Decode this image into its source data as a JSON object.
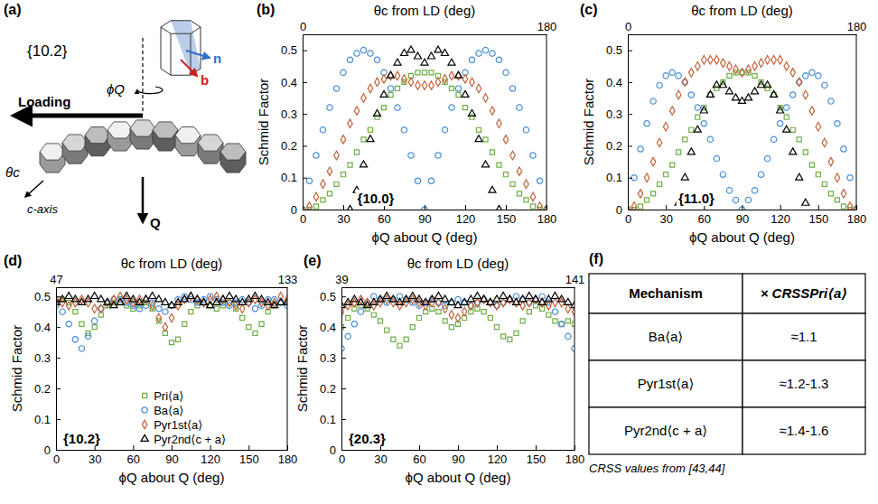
{
  "panel_letters": [
    "(a)",
    "(b)",
    "(c)",
    "(d)",
    "(e)",
    "(f)"
  ],
  "diagram": {
    "plane": "{10.2}",
    "loading": "Loading",
    "phi": "ϕQ",
    "theta": "θc",
    "c_axis": "c-axis",
    "q": "Q",
    "n": "n",
    "b": "b"
  },
  "chart_data": [
    {
      "type": "scatter",
      "annotation": "{10.0}",
      "x_label": "ϕQ about Q (deg)",
      "x2_label": "θc from LD (deg)",
      "y_label": "Schmid Factor",
      "x": [
        0,
        5,
        10,
        15,
        20,
        25,
        30,
        35,
        40,
        45,
        50,
        55,
        60,
        65,
        70,
        75,
        80,
        85,
        90,
        95,
        100,
        105,
        110,
        115,
        120,
        125,
        130,
        135,
        140,
        145,
        150,
        155,
        160,
        165,
        170,
        175,
        180
      ],
      "xlim": [
        0,
        180
      ],
      "xticks": [
        0,
        30,
        60,
        90,
        120,
        150,
        180
      ],
      "x2lim": [
        0,
        180
      ],
      "x2ticks": [
        0,
        180
      ],
      "ylim": [
        0,
        0.55
      ],
      "yticks": [
        0,
        0.1,
        0.2,
        0.3,
        0.4,
        0.5
      ],
      "series": [
        {
          "color": "#6fae45",
          "marker": "square",
          "values": [
            0,
            0,
            0.01,
            0.03,
            0.05,
            0.08,
            0.11,
            0.14,
            0.18,
            0.22,
            0.25,
            0.29,
            0.32,
            0.36,
            0.38,
            0.4,
            0.42,
            0.43,
            0.43,
            0.43,
            0.42,
            0.4,
            0.38,
            0.36,
            0.32,
            0.29,
            0.25,
            0.22,
            0.18,
            0.14,
            0.11,
            0.08,
            0.05,
            0.03,
            0.01,
            0,
            0
          ]
        },
        {
          "color": "#4a8fd6",
          "marker": "circle",
          "values": [
            0,
            0.09,
            0.17,
            0.25,
            0.32,
            0.38,
            0.43,
            0.47,
            0.49,
            0.5,
            0.49,
            0.47,
            0.43,
            0.38,
            0.32,
            0.25,
            0.17,
            0.09,
            0,
            0.09,
            0.17,
            0.25,
            0.32,
            0.38,
            0.43,
            0.47,
            0.49,
            0.5,
            0.49,
            0.47,
            0.43,
            0.38,
            0.32,
            0.25,
            0.17,
            0.09,
            0
          ]
        },
        {
          "color": "#c4623a",
          "marker": "diamond",
          "values": [
            0,
            0.01,
            0.04,
            0.08,
            0.12,
            0.17,
            0.22,
            0.27,
            0.31,
            0.35,
            0.38,
            0.4,
            0.41,
            0.42,
            0.42,
            0.41,
            0.4,
            0.39,
            0.39,
            0.39,
            0.4,
            0.41,
            0.42,
            0.42,
            0.41,
            0.4,
            0.38,
            0.35,
            0.31,
            0.27,
            0.22,
            0.17,
            0.12,
            0.08,
            0.04,
            0.01,
            0
          ]
        },
        {
          "color": "#000000",
          "marker": "triangle",
          "values": [
            null,
            null,
            null,
            null,
            null,
            null,
            null,
            0,
            0.06,
            0.14,
            0.22,
            0.3,
            0.36,
            0.42,
            0.46,
            0.49,
            0.5,
            0.48,
            0.46,
            0.48,
            0.5,
            0.49,
            0.46,
            0.42,
            0.36,
            0.3,
            0.22,
            0.14,
            0.06,
            0,
            null,
            null,
            null,
            null,
            null,
            null,
            null
          ]
        }
      ]
    },
    {
      "type": "scatter",
      "annotation": "{11.0}",
      "x_label": "ϕQ about Q (deg)",
      "x2_label": "θc from LD (deg)",
      "y_label": "Schmid Factor",
      "x": [
        0,
        5,
        10,
        15,
        20,
        25,
        30,
        35,
        40,
        45,
        50,
        55,
        60,
        65,
        70,
        75,
        80,
        85,
        90,
        95,
        100,
        105,
        110,
        115,
        120,
        125,
        130,
        135,
        140,
        145,
        150,
        155,
        160,
        165,
        170,
        175,
        180
      ],
      "xlim": [
        0,
        180
      ],
      "xticks": [
        0,
        30,
        60,
        90,
        120,
        150,
        180
      ],
      "x2lim": [
        0,
        180
      ],
      "x2ticks": [
        0,
        180
      ],
      "ylim": [
        0,
        0.55
      ],
      "yticks": [
        0,
        0.1,
        0.2,
        0.3,
        0.4,
        0.5
      ],
      "series": [
        {
          "color": "#6fae45",
          "marker": "square",
          "values": [
            0,
            0,
            0.01,
            0.03,
            0.05,
            0.08,
            0.11,
            0.14,
            0.18,
            0.22,
            0.25,
            0.29,
            0.32,
            0.36,
            0.38,
            0.4,
            0.42,
            0.43,
            0.43,
            0.43,
            0.42,
            0.4,
            0.38,
            0.36,
            0.32,
            0.29,
            0.25,
            0.22,
            0.18,
            0.14,
            0.11,
            0.08,
            0.05,
            0.03,
            0.01,
            0,
            0
          ]
        },
        {
          "color": "#4a8fd6",
          "marker": "circle",
          "values": [
            0,
            0.1,
            0.19,
            0.27,
            0.34,
            0.39,
            0.42,
            0.43,
            0.42,
            0.4,
            0.36,
            0.32,
            0.27,
            0.22,
            0.16,
            0.11,
            0.06,
            0.03,
            0,
            0.03,
            0.06,
            0.11,
            0.16,
            0.22,
            0.27,
            0.32,
            0.36,
            0.4,
            0.42,
            0.43,
            0.42,
            0.39,
            0.34,
            0.27,
            0.19,
            0.1,
            0
          ]
        },
        {
          "color": "#c4623a",
          "marker": "diamond",
          "values": [
            0,
            0.01,
            0.05,
            0.1,
            0.15,
            0.21,
            0.26,
            0.31,
            0.36,
            0.4,
            0.43,
            0.45,
            0.47,
            0.47,
            0.47,
            0.46,
            0.45,
            0.44,
            0.43,
            0.44,
            0.45,
            0.46,
            0.47,
            0.47,
            0.47,
            0.45,
            0.43,
            0.4,
            0.36,
            0.31,
            0.26,
            0.21,
            0.15,
            0.1,
            0.05,
            0.01,
            0
          ]
        },
        {
          "color": "#000000",
          "marker": "triangle",
          "values": [
            null,
            null,
            null,
            null,
            null,
            null,
            null,
            null,
            0.02,
            0.1,
            0.18,
            0.25,
            0.31,
            0.36,
            0.39,
            0.39,
            0.37,
            0.35,
            0.34,
            0.35,
            0.37,
            0.39,
            0.39,
            0.36,
            0.31,
            0.25,
            0.18,
            0.1,
            0.02,
            null,
            null,
            null,
            null,
            null,
            null,
            null,
            null
          ]
        }
      ]
    },
    {
      "type": "scatter",
      "annotation": "{10.2}",
      "x_label": "ϕQ about Q (deg)",
      "x2_label": "θc from LD (deg)",
      "y_label": "Schmid Factor",
      "x": [
        0,
        5,
        10,
        15,
        20,
        25,
        30,
        35,
        40,
        45,
        50,
        55,
        60,
        65,
        70,
        75,
        80,
        85,
        90,
        95,
        100,
        105,
        110,
        115,
        120,
        125,
        130,
        135,
        140,
        145,
        150,
        155,
        160,
        165,
        170,
        175,
        180
      ],
      "xlim": [
        0,
        180
      ],
      "xticks": [
        0,
        30,
        60,
        90,
        120,
        150,
        180
      ],
      "x2lim": [
        47,
        133
      ],
      "x2ticks": [
        47,
        133
      ],
      "ylim": [
        0,
        0.53
      ],
      "yticks": [
        0,
        0.1,
        0.2,
        0.3,
        0.4,
        0.5
      ],
      "legend": "lower center",
      "series": [
        {
          "name": "Pri⟨a⟩",
          "color": "#6fae45",
          "marker": "square",
          "values": [
            0.48,
            0.49,
            0.48,
            0.45,
            0.41,
            0.38,
            0.4,
            0.44,
            0.47,
            0.48,
            0.48,
            0.47,
            0.46,
            0.47,
            0.48,
            0.46,
            0.42,
            0.38,
            0.35,
            0.36,
            0.41,
            0.45,
            0.47,
            0.48,
            0.47,
            0.46,
            0.47,
            0.48,
            0.46,
            0.43,
            0.4,
            0.38,
            0.41,
            0.45,
            0.47,
            0.48,
            0.48
          ]
        },
        {
          "name": "Ba⟨a⟩",
          "color": "#4a8fd6",
          "marker": "circle",
          "values": [
            0.47,
            0.45,
            0.41,
            0.36,
            0.33,
            0.37,
            0.42,
            0.46,
            0.48,
            0.49,
            0.49,
            0.48,
            0.47,
            0.46,
            0.47,
            0.48,
            0.46,
            0.45,
            0.47,
            0.49,
            0.5,
            0.49,
            0.48,
            0.49,
            0.5,
            0.49,
            0.48,
            0.47,
            0.48,
            0.49,
            0.48,
            0.46,
            0.47,
            0.49,
            0.49,
            0.48,
            0.47
          ]
        },
        {
          "name": "Pyr1st⟨a⟩",
          "color": "#c4623a",
          "marker": "diamond",
          "values": [
            0.49,
            0.48,
            0.47,
            0.48,
            0.49,
            0.48,
            0.46,
            0.46,
            0.48,
            0.49,
            0.5,
            0.49,
            0.48,
            0.49,
            0.49,
            0.47,
            0.43,
            0.4,
            0.43,
            0.47,
            0.49,
            0.5,
            0.49,
            0.48,
            0.49,
            0.5,
            0.49,
            0.48,
            0.47,
            0.46,
            0.48,
            0.49,
            0.48,
            0.47,
            0.48,
            0.5,
            0.49
          ]
        },
        {
          "name": "Pyr2nd⟨c + a⟩",
          "color": "#000000",
          "marker": "triangle",
          "values": [
            0.48,
            0.49,
            0.5,
            0.49,
            0.48,
            0.49,
            0.5,
            0.49,
            0.48,
            0.47,
            0.48,
            0.5,
            0.49,
            0.48,
            0.49,
            0.5,
            0.49,
            0.48,
            0.47,
            0.48,
            0.49,
            0.5,
            0.49,
            0.48,
            0.47,
            0.48,
            0.49,
            0.5,
            0.49,
            0.48,
            0.49,
            0.5,
            0.49,
            0.48,
            0.47,
            0.48,
            0.48
          ]
        }
      ]
    },
    {
      "type": "scatter",
      "annotation": "{20.3}",
      "x_label": "ϕQ about Q (deg)",
      "x2_label": "θc from LD (deg)",
      "y_label": "Schmid Factor",
      "x": [
        0,
        5,
        10,
        15,
        20,
        25,
        30,
        35,
        40,
        45,
        50,
        55,
        60,
        65,
        70,
        75,
        80,
        85,
        90,
        95,
        100,
        105,
        110,
        115,
        120,
        125,
        130,
        135,
        140,
        145,
        150,
        155,
        160,
        165,
        170,
        175,
        180
      ],
      "xlim": [
        0,
        180
      ],
      "xticks": [
        0,
        30,
        60,
        90,
        120,
        150,
        180
      ],
      "x2lim": [
        39,
        141
      ],
      "x2ticks": [
        39,
        141
      ],
      "ylim": [
        0,
        0.53
      ],
      "yticks": [
        0,
        0.1,
        0.2,
        0.3,
        0.4,
        0.5
      ],
      "series": [
        {
          "color": "#6fae45",
          "marker": "square",
          "values": [
            0.4,
            0.43,
            0.46,
            0.47,
            0.46,
            0.44,
            0.42,
            0.39,
            0.36,
            0.34,
            0.36,
            0.4,
            0.43,
            0.45,
            0.46,
            0.45,
            0.42,
            0.4,
            0.41,
            0.43,
            0.45,
            0.46,
            0.45,
            0.43,
            0.4,
            0.37,
            0.36,
            0.38,
            0.42,
            0.45,
            0.47,
            0.46,
            0.44,
            0.42,
            0.41,
            0.42,
            0.41
          ]
        },
        {
          "color": "#4a8fd6",
          "marker": "circle",
          "values": [
            0.33,
            0.37,
            0.41,
            0.45,
            0.48,
            0.5,
            0.49,
            0.48,
            0.49,
            0.5,
            0.49,
            0.48,
            0.47,
            0.48,
            0.49,
            0.48,
            0.47,
            0.48,
            0.49,
            0.48,
            0.47,
            0.48,
            0.49,
            0.48,
            0.47,
            0.48,
            0.49,
            0.5,
            0.49,
            0.48,
            0.49,
            0.5,
            0.48,
            0.45,
            0.41,
            0.37,
            0.33
          ]
        },
        {
          "color": "#c4623a",
          "marker": "diamond",
          "values": [
            0.45,
            0.47,
            0.48,
            0.49,
            0.48,
            0.47,
            0.48,
            0.49,
            0.48,
            0.47,
            0.48,
            0.49,
            0.48,
            0.47,
            0.48,
            0.48,
            0.46,
            0.44,
            0.43,
            0.45,
            0.47,
            0.48,
            0.49,
            0.48,
            0.47,
            0.48,
            0.49,
            0.48,
            0.47,
            0.48,
            0.49,
            0.48,
            0.47,
            0.48,
            0.48,
            0.46,
            0.45
          ]
        },
        {
          "color": "#000000",
          "marker": "triangle",
          "values": [
            0.47,
            0.48,
            0.49,
            0.48,
            0.47,
            0.48,
            0.49,
            0.5,
            0.49,
            0.48,
            0.49,
            0.5,
            0.49,
            0.48,
            0.49,
            0.5,
            0.49,
            0.48,
            0.47,
            0.48,
            0.49,
            0.5,
            0.49,
            0.48,
            0.49,
            0.5,
            0.49,
            0.48,
            0.49,
            0.5,
            0.49,
            0.48,
            0.49,
            0.5,
            0.49,
            0.48,
            0.47
          ]
        }
      ]
    }
  ],
  "table": {
    "header": [
      "Mechanism",
      "× CRSSPri⟨a⟩"
    ],
    "rows": [
      [
        "Ba⟨a⟩",
        "≈1.1"
      ],
      [
        "Pyr1st⟨a⟩",
        "≈1.2-1.3"
      ],
      [
        "Pyr2nd⟨c + a⟩",
        "≈1.4-1.6"
      ]
    ],
    "caption": "CRSS values from [43,44]"
  }
}
